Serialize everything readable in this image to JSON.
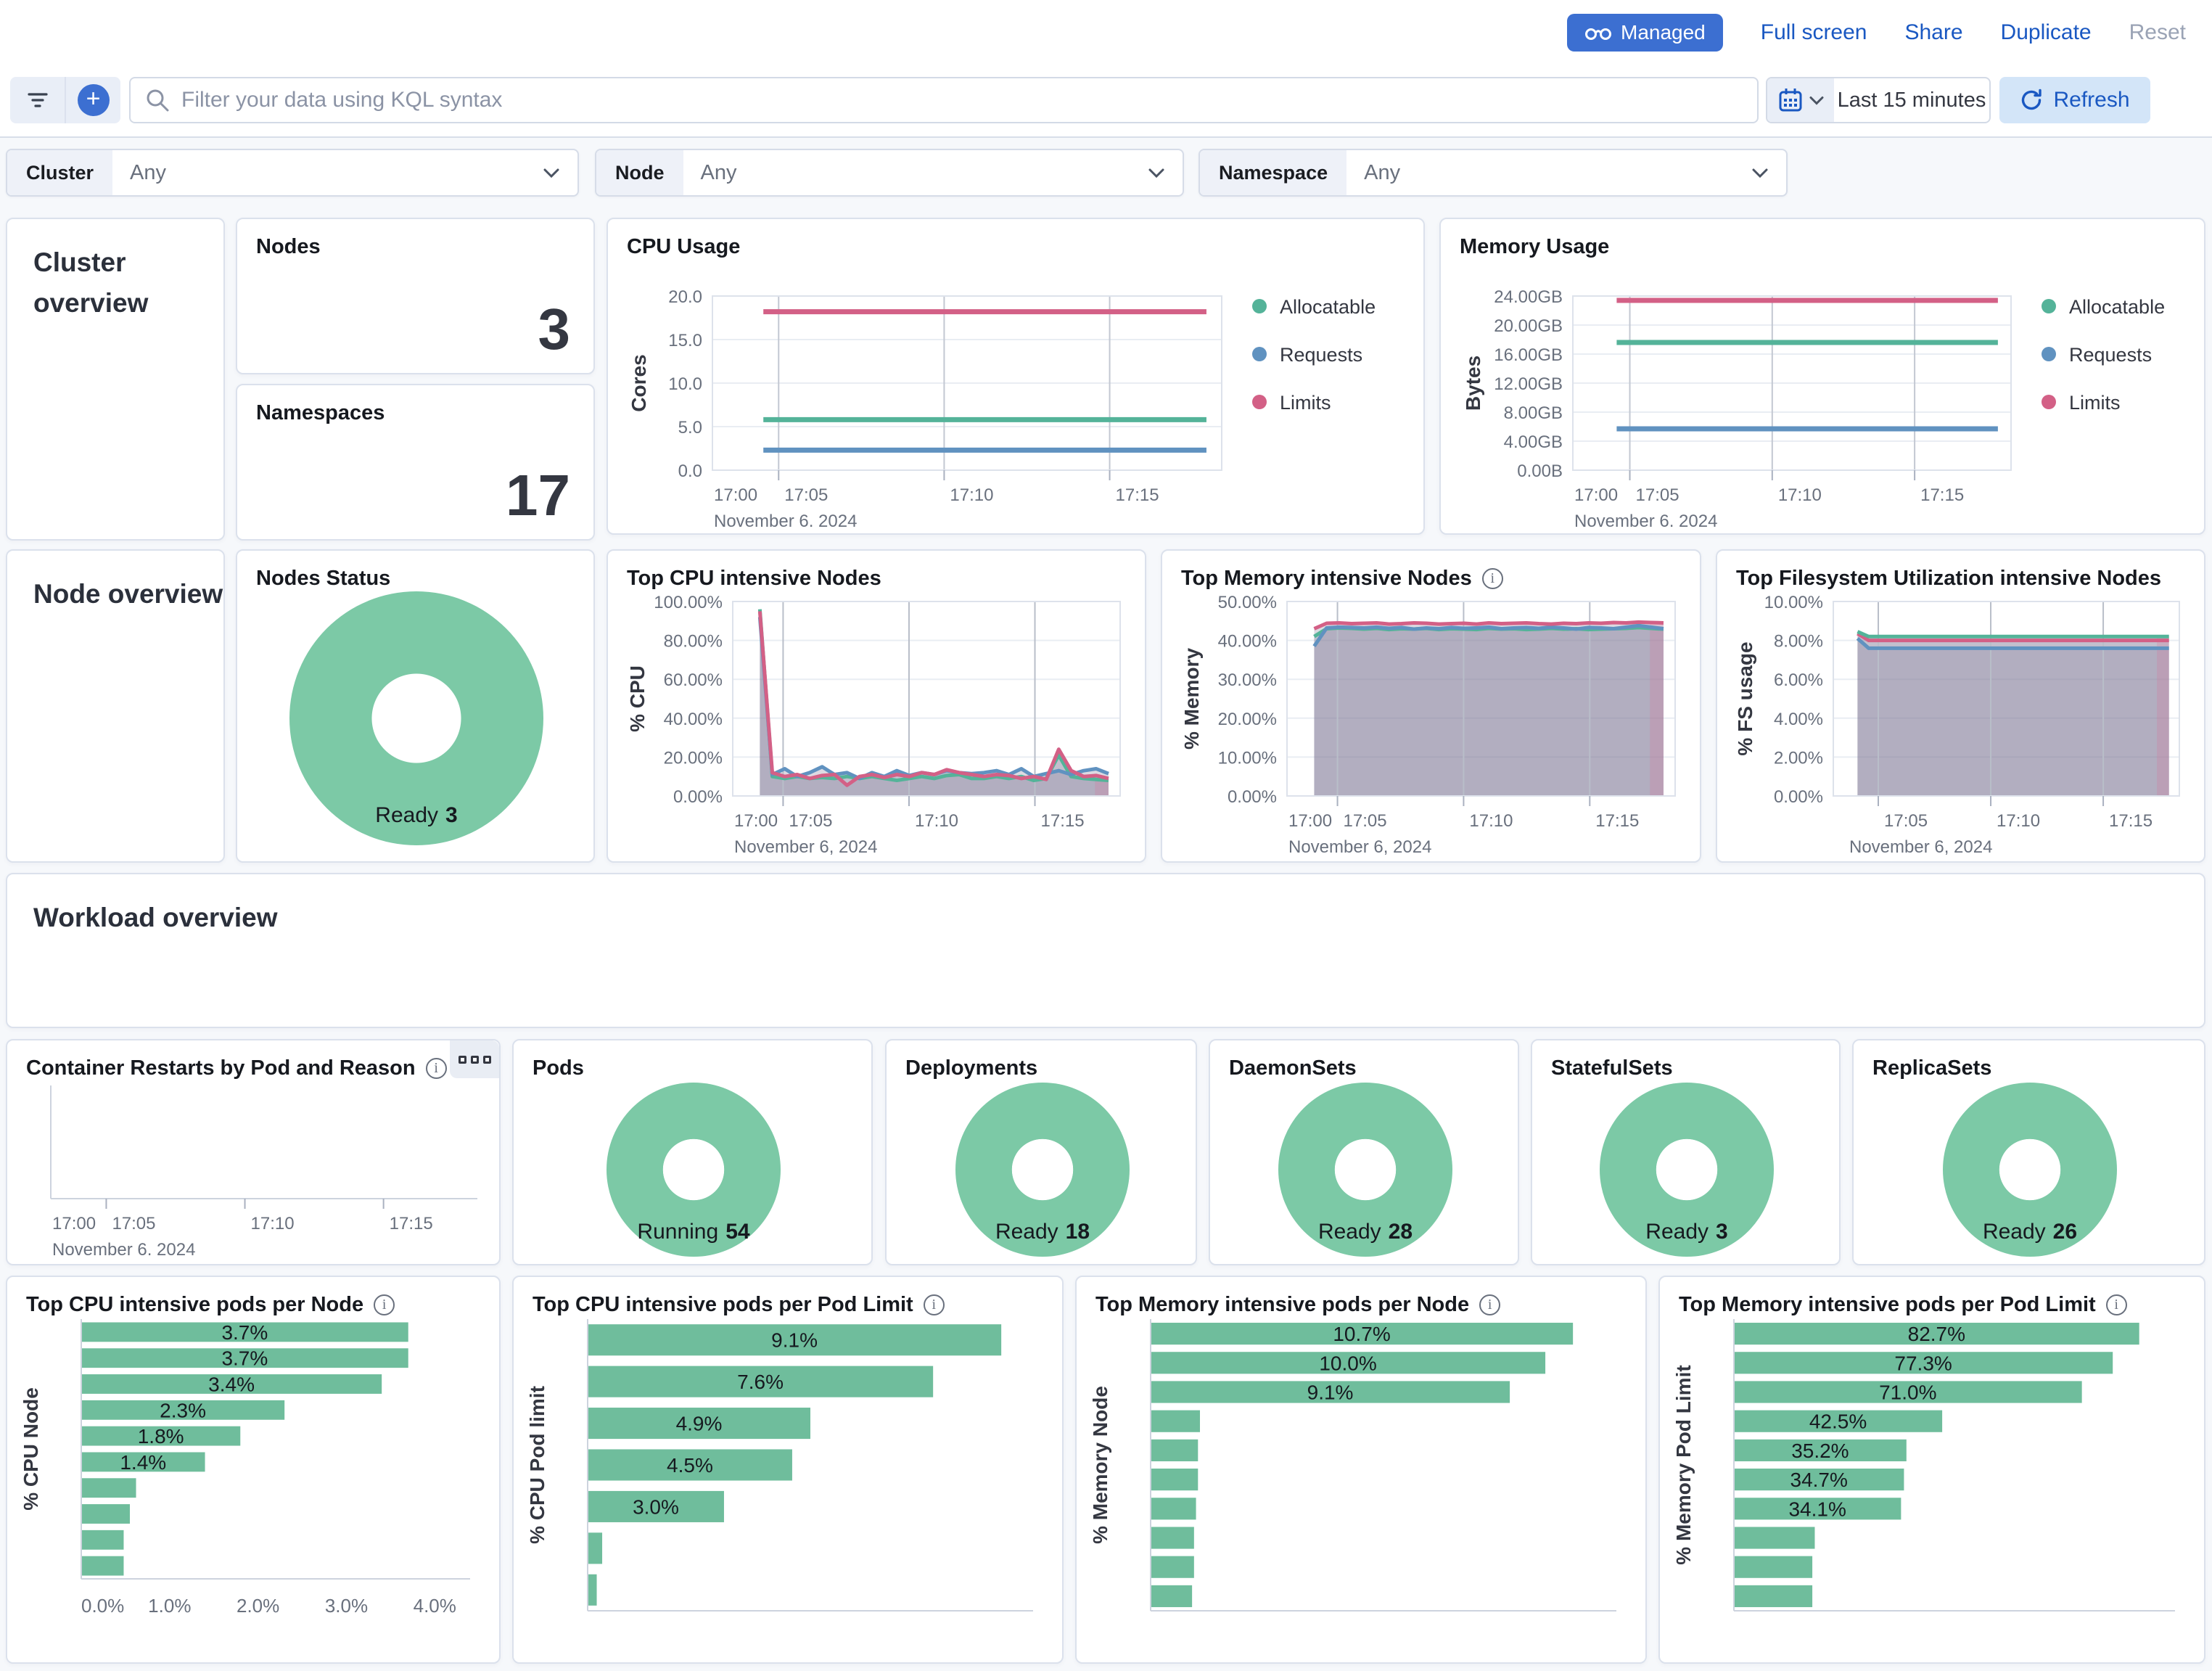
{
  "colors": {
    "green": "#54b399",
    "blue": "#6092c0",
    "pink": "#d36086",
    "bar": "#6fbd9c",
    "donut": "#7cc9a6",
    "accent": "#1a58c2"
  },
  "topbar": {
    "managed_label": "Managed",
    "full_screen": "Full screen",
    "share": "Share",
    "duplicate": "Duplicate",
    "reset": "Reset"
  },
  "toolbar": {
    "search_placeholder": "Filter your data using KQL syntax",
    "time_range": "Last 15 minutes",
    "refresh_label": "Refresh"
  },
  "filters": [
    {
      "label": "Cluster",
      "value": "Any"
    },
    {
      "label": "Node",
      "value": "Any"
    },
    {
      "label": "Namespace",
      "value": "Any"
    }
  ],
  "sections": {
    "cluster": "Cluster overview",
    "node": "Node overview",
    "workload": "Workload overview"
  },
  "metrics": {
    "nodes_title": "Nodes",
    "nodes_value": "3",
    "namespaces_title": "Namespaces",
    "namespaces_value": "17"
  },
  "donuts": [
    {
      "title": "Nodes Status",
      "status": "Ready",
      "value": "3"
    },
    {
      "title": "Pods",
      "status": "Running",
      "value": "54"
    },
    {
      "title": "Deployments",
      "status": "Ready",
      "value": "18"
    },
    {
      "title": "DaemonSets",
      "status": "Ready",
      "value": "28"
    },
    {
      "title": "StatefulSets",
      "status": "Ready",
      "value": "3"
    },
    {
      "title": "ReplicaSets",
      "status": "Ready",
      "value": "26"
    }
  ],
  "chart_data": [
    {
      "id": "cpu_usage",
      "type": "line",
      "title": "CPU Usage",
      "ylabel": "Cores",
      "ylim": [
        0,
        20
      ],
      "yticks": [
        {
          "v": 0,
          "label": "0.0"
        },
        {
          "v": 5,
          "label": "5.0"
        },
        {
          "v": 10,
          "label": "10.0"
        },
        {
          "v": 15,
          "label": "15.0"
        },
        {
          "v": 20,
          "label": "20.0"
        }
      ],
      "xticks": [
        {
          "f": 0,
          "label": "17:00"
        },
        {
          "f": 0.13,
          "label": "17:05"
        },
        {
          "f": 0.455,
          "label": "17:10"
        },
        {
          "f": 0.78,
          "label": "17:15"
        }
      ],
      "xdate": "November 6, 2024",
      "legend_position": "right",
      "grid": true,
      "series": [
        {
          "name": "Allocatable",
          "color": "green",
          "value": 5.8
        },
        {
          "name": "Requests",
          "color": "blue",
          "value": 2.3
        },
        {
          "name": "Limits",
          "color": "pink",
          "value": 18.2
        }
      ]
    },
    {
      "id": "memory_usage",
      "type": "line",
      "title": "Memory Usage",
      "ylabel": "Bytes",
      "ylim": [
        0,
        24
      ],
      "yticks": [
        {
          "v": 0,
          "label": "0.00B"
        },
        {
          "v": 4,
          "label": "4.00GB"
        },
        {
          "v": 8,
          "label": "8.00GB"
        },
        {
          "v": 12,
          "label": "12.00GB"
        },
        {
          "v": 16,
          "label": "16.00GB"
        },
        {
          "v": 20,
          "label": "20.00GB"
        },
        {
          "v": 24,
          "label": "24.00GB"
        }
      ],
      "xticks": [
        {
          "f": 0,
          "label": "17:00"
        },
        {
          "f": 0.13,
          "label": "17:05"
        },
        {
          "f": 0.455,
          "label": "17:10"
        },
        {
          "f": 0.78,
          "label": "17:15"
        }
      ],
      "xdate": "November 6, 2024",
      "legend_position": "right",
      "grid": true,
      "series": [
        {
          "name": "Allocatable",
          "color": "green",
          "value": 17.6
        },
        {
          "name": "Requests",
          "color": "blue",
          "value": 5.7
        },
        {
          "name": "Limits",
          "color": "pink",
          "value": 23.4
        }
      ]
    },
    {
      "id": "top_cpu_nodes",
      "type": "area",
      "title": "Top CPU intensive Nodes",
      "ylabel": "% CPU",
      "ylim": [
        0,
        100
      ],
      "yticks": [
        {
          "v": 0,
          "label": "0.00%"
        },
        {
          "v": 20,
          "label": "20.00%"
        },
        {
          "v": 40,
          "label": "40.00%"
        },
        {
          "v": 60,
          "label": "60.00%"
        },
        {
          "v": 80,
          "label": "80.00%"
        },
        {
          "v": 100,
          "label": "100.00%"
        }
      ],
      "xticks": [
        {
          "f": 0,
          "label": "17:00"
        },
        {
          "f": 0.13,
          "label": "17:05"
        },
        {
          "f": 0.455,
          "label": "17:10"
        },
        {
          "f": 0.78,
          "label": "17:15"
        }
      ],
      "xdate": "November 6, 2024",
      "grid": true,
      "series": [
        {
          "color": "green",
          "values": [
            96,
            10,
            9,
            10,
            9,
            9.5,
            9,
            10,
            9,
            10,
            9,
            8,
            9,
            10,
            9,
            10.5,
            11,
            9,
            9,
            10,
            9,
            10,
            8,
            9,
            21,
            10,
            9,
            8.5,
            8
          ]
        },
        {
          "color": "blue",
          "values": [
            92,
            11,
            14,
            10,
            12,
            15,
            11,
            12,
            9,
            12,
            10,
            13,
            10.5,
            12,
            11,
            13,
            12,
            11.5,
            12,
            13,
            11,
            14,
            10,
            11.5,
            13,
            11,
            13,
            14,
            11.5
          ]
        },
        {
          "color": "pink",
          "values": [
            95,
            12,
            10,
            11,
            9,
            10.5,
            11,
            5.5,
            10,
            11,
            9.5,
            11,
            10,
            12,
            11,
            13.5,
            12,
            11,
            10,
            11,
            10.5,
            9,
            10,
            8.5,
            24,
            13,
            10,
            10.5,
            9
          ]
        }
      ]
    },
    {
      "id": "top_memory_nodes",
      "type": "area",
      "title": "Top Memory intensive Nodes",
      "ylabel": "% Memory",
      "ylim": [
        0,
        50
      ],
      "yticks": [
        {
          "v": 0,
          "label": "0.00%"
        },
        {
          "v": 10,
          "label": "10.00%"
        },
        {
          "v": 20,
          "label": "20.00%"
        },
        {
          "v": 30,
          "label": "30.00%"
        },
        {
          "v": 40,
          "label": "40.00%"
        },
        {
          "v": 50,
          "label": "50.00%"
        }
      ],
      "xticks": [
        {
          "f": 0,
          "label": "17:00"
        },
        {
          "f": 0.13,
          "label": "17:05"
        },
        {
          "f": 0.455,
          "label": "17:10"
        },
        {
          "f": 0.78,
          "label": "17:15"
        }
      ],
      "xdate": "November 6, 2024",
      "grid": true,
      "series": [
        {
          "color": "green",
          "values": [
            41,
            43,
            43.2,
            43.1,
            42.9,
            43.1,
            42.8,
            43,
            42.9,
            43.1,
            42.8,
            43,
            42.9,
            42.8,
            43.1,
            42.9,
            43,
            42.8,
            42.9,
            43.1,
            42.9,
            43,
            42.8,
            42.9,
            43,
            43.1,
            43.3,
            43.1,
            42.9
          ]
        },
        {
          "color": "blue",
          "values": [
            38.5,
            43.2,
            43.4,
            43.3,
            43.2,
            43.4,
            43.1,
            43.3,
            42.9,
            43.2,
            43,
            43.3,
            43.1,
            43.2,
            43.4,
            43,
            43.2,
            43.3,
            43.1,
            43.4,
            43.2,
            42.9,
            43.3,
            43.2,
            43,
            43.4,
            43.8,
            43.4,
            43
          ]
        },
        {
          "color": "pink",
          "values": [
            43,
            44.4,
            44.5,
            44.3,
            44.4,
            44.5,
            44.2,
            44.3,
            44.5,
            44.4,
            44.2,
            44.3,
            44.4,
            44.2,
            44.5,
            44.3,
            44.4,
            44.5,
            44.3,
            44.2,
            44.4,
            44.3,
            44.5,
            44.4,
            44.6,
            44.5,
            44.7,
            44.6,
            44.5
          ]
        }
      ]
    },
    {
      "id": "top_fs_nodes",
      "type": "area",
      "title": "Top Filesystem Utilization intensive Nodes",
      "ylabel": "% FS usage",
      "ylim": [
        0,
        10
      ],
      "yticks": [
        {
          "v": 0,
          "label": "0.00%"
        },
        {
          "v": 2,
          "label": "2.00%"
        },
        {
          "v": 4,
          "label": "4.00%"
        },
        {
          "v": 6,
          "label": "6.00%"
        },
        {
          "v": 8,
          "label": "8.00%"
        },
        {
          "v": 10,
          "label": "10.00%"
        }
      ],
      "xticks": [
        {
          "f": 0.13,
          "label": "17:05"
        },
        {
          "f": 0.455,
          "label": "17:10"
        },
        {
          "f": 0.78,
          "label": "17:15"
        }
      ],
      "xdate": "November 6, 2024",
      "grid": true,
      "series": [
        {
          "color": "blue",
          "values": [
            8.1,
            7.6,
            7.6,
            7.6,
            7.6,
            7.6,
            7.6,
            7.6,
            7.6,
            7.6,
            7.6,
            7.6,
            7.6,
            7.6,
            7.6,
            7.6,
            7.6,
            7.6,
            7.6,
            7.6,
            7.6,
            7.6,
            7.6,
            7.6,
            7.6,
            7.6,
            7.6,
            7.6,
            7.6
          ]
        },
        {
          "color": "pink",
          "values": [
            8.35,
            8,
            8,
            8,
            8,
            8,
            8,
            8,
            8,
            8,
            8,
            8,
            8,
            8,
            8,
            8,
            8,
            8,
            8,
            8,
            8,
            8,
            8,
            8,
            8,
            8,
            8,
            8,
            8
          ]
        },
        {
          "color": "green",
          "values": [
            8.45,
            8.2,
            8.2,
            8.2,
            8.2,
            8.2,
            8.2,
            8.2,
            8.2,
            8.2,
            8.2,
            8.2,
            8.2,
            8.2,
            8.2,
            8.2,
            8.2,
            8.2,
            8.2,
            8.2,
            8.2,
            8.2,
            8.2,
            8.2,
            8.2,
            8.2,
            8.2,
            8.2,
            8.2
          ]
        }
      ]
    },
    {
      "id": "container_restarts",
      "type": "empty",
      "title": "Container Restarts by Pod and Reason",
      "xticks": [
        {
          "f": 0,
          "label": "17:00"
        },
        {
          "f": 0.13,
          "label": "17:05"
        },
        {
          "f": 0.455,
          "label": "17:10"
        },
        {
          "f": 0.78,
          "label": "17:15"
        }
      ],
      "xdate": "November 6, 2024"
    },
    {
      "id": "cpu_pods_node",
      "type": "bar",
      "title": "Top CPU intensive pods per Node",
      "ylabel": "% CPU Node",
      "xmax": 4.4,
      "values": [
        3.7,
        3.7,
        3.4,
        2.3,
        1.8,
        1.4,
        0.62,
        0.55,
        0.48,
        0.48
      ],
      "labels": [
        "3.7%",
        "3.7%",
        "3.4%",
        "2.3%",
        "1.8%",
        "1.4%",
        "",
        "",
        "",
        ""
      ],
      "xticks": [
        {
          "v": 0,
          "label": "0.0%"
        },
        {
          "v": 1,
          "label": "1.0%"
        },
        {
          "v": 2,
          "label": "2.0%"
        },
        {
          "v": 3,
          "label": "3.0%"
        },
        {
          "v": 4,
          "label": "4.0%"
        }
      ]
    },
    {
      "id": "cpu_pods_limit",
      "type": "bar",
      "title": "Top CPU intensive pods per Pod Limit",
      "ylabel": "% CPU Pod limit",
      "xmax": 9.8,
      "values": [
        9.1,
        7.6,
        4.9,
        4.5,
        3.0,
        0.32,
        0.2
      ],
      "labels": [
        "9.1%",
        "7.6%",
        "4.9%",
        "4.5%",
        "3.0%",
        "",
        ""
      ]
    },
    {
      "id": "mem_pods_node",
      "type": "bar",
      "title": "Top Memory intensive pods per Node",
      "ylabel": "% Memory Node",
      "xmax": 11.8,
      "values": [
        10.7,
        10.0,
        9.1,
        1.25,
        1.2,
        1.2,
        1.15,
        1.1,
        1.1,
        1.05
      ],
      "labels": [
        "10.7%",
        "10.0%",
        "9.1%",
        "",
        "",
        "",
        "",
        "",
        "",
        ""
      ]
    },
    {
      "id": "mem_pods_limit",
      "type": "bar",
      "title": "Top Memory intensive pods per Pod Limit",
      "ylabel": "% Memory Pod Limit",
      "xmax": 90,
      "values": [
        82.7,
        77.3,
        71.0,
        42.5,
        35.2,
        34.7,
        34.1,
        16.5,
        16,
        16
      ],
      "labels": [
        "82.7%",
        "77.3%",
        "71.0%",
        "42.5%",
        "35.2%",
        "34.7%",
        "34.1%",
        "",
        "",
        ""
      ]
    }
  ]
}
